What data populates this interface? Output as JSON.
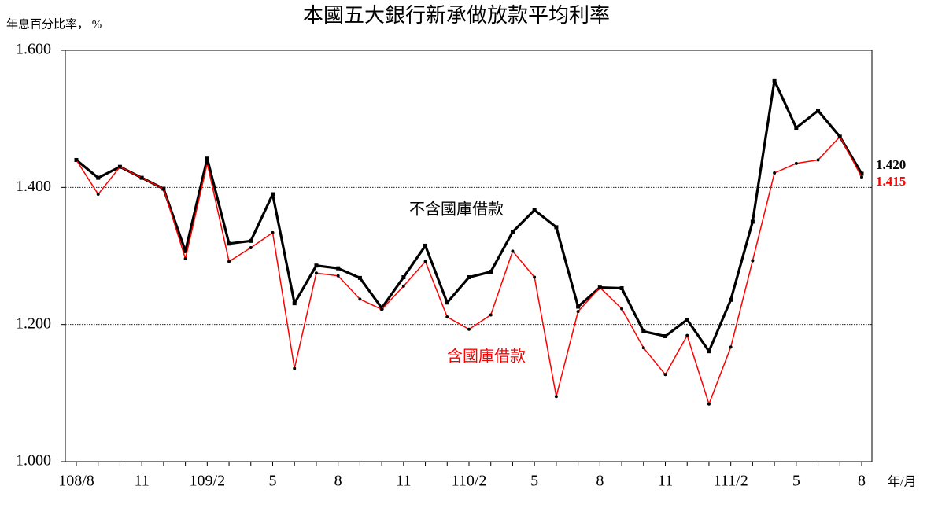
{
  "chart_data": {
    "type": "line",
    "title": "本國五大銀行新承做放款平均利率",
    "y_label": "年息百分比率， %",
    "x_label": "年/月",
    "categories": [
      "108/8",
      null,
      null,
      "11",
      null,
      null,
      "109/2",
      null,
      null,
      "5",
      null,
      null,
      "8",
      null,
      null,
      "11",
      null,
      null,
      "110/2",
      null,
      null,
      "5",
      null,
      null,
      "8",
      null,
      null,
      "11",
      null,
      null,
      "111/2",
      null,
      null,
      "5",
      null,
      null,
      "8"
    ],
    "series": [
      {
        "name": "不含國庫借款",
        "color": "#000000",
        "values": [
          1.44,
          1.414,
          1.43,
          1.414,
          1.398,
          1.307,
          1.442,
          1.318,
          1.322,
          1.39,
          1.231,
          1.286,
          1.282,
          1.268,
          1.224,
          1.269,
          1.315,
          1.232,
          1.269,
          1.277,
          1.335,
          1.367,
          1.342,
          1.226,
          1.254,
          1.253,
          1.19,
          1.183,
          1.207,
          1.161,
          1.236,
          1.35,
          1.556,
          1.487,
          1.512,
          1.474,
          1.42
        ],
        "value_labels": [
          null,
          null,
          null,
          null,
          null,
          null,
          null,
          null,
          null,
          null,
          null,
          null,
          null,
          null,
          null,
          null,
          null,
          null,
          null,
          null,
          null,
          null,
          null,
          null,
          null,
          null,
          null,
          null,
          null,
          null,
          null,
          null,
          null,
          null,
          null,
          null,
          "1.420"
        ]
      },
      {
        "name": "含國庫借款",
        "color": "#ff0000",
        "values": [
          1.44,
          1.39,
          1.43,
          1.414,
          1.398,
          1.296,
          1.435,
          1.292,
          1.312,
          1.334,
          1.136,
          1.275,
          1.271,
          1.237,
          1.222,
          1.256,
          1.292,
          1.211,
          1.193,
          1.214,
          1.307,
          1.269,
          1.095,
          1.219,
          1.254,
          1.223,
          1.166,
          1.127,
          1.184,
          1.084,
          1.167,
          1.293,
          1.421,
          1.435,
          1.44,
          1.474,
          1.415
        ],
        "value_labels": [
          null,
          null,
          null,
          null,
          null,
          null,
          null,
          null,
          null,
          null,
          null,
          null,
          null,
          null,
          null,
          null,
          null,
          null,
          null,
          null,
          null,
          null,
          null,
          null,
          null,
          null,
          null,
          null,
          null,
          null,
          null,
          null,
          null,
          null,
          null,
          null,
          "1.415"
        ]
      }
    ],
    "ylim": [
      1.0,
      1.6
    ],
    "yticks": [
      {
        "value": 1.0,
        "label": "1.000"
      },
      {
        "value": 1.2,
        "label": "1.200"
      },
      {
        "value": 1.4,
        "label": "1.400"
      },
      {
        "value": 1.6,
        "label": "1.600"
      }
    ],
    "grid": true
  }
}
